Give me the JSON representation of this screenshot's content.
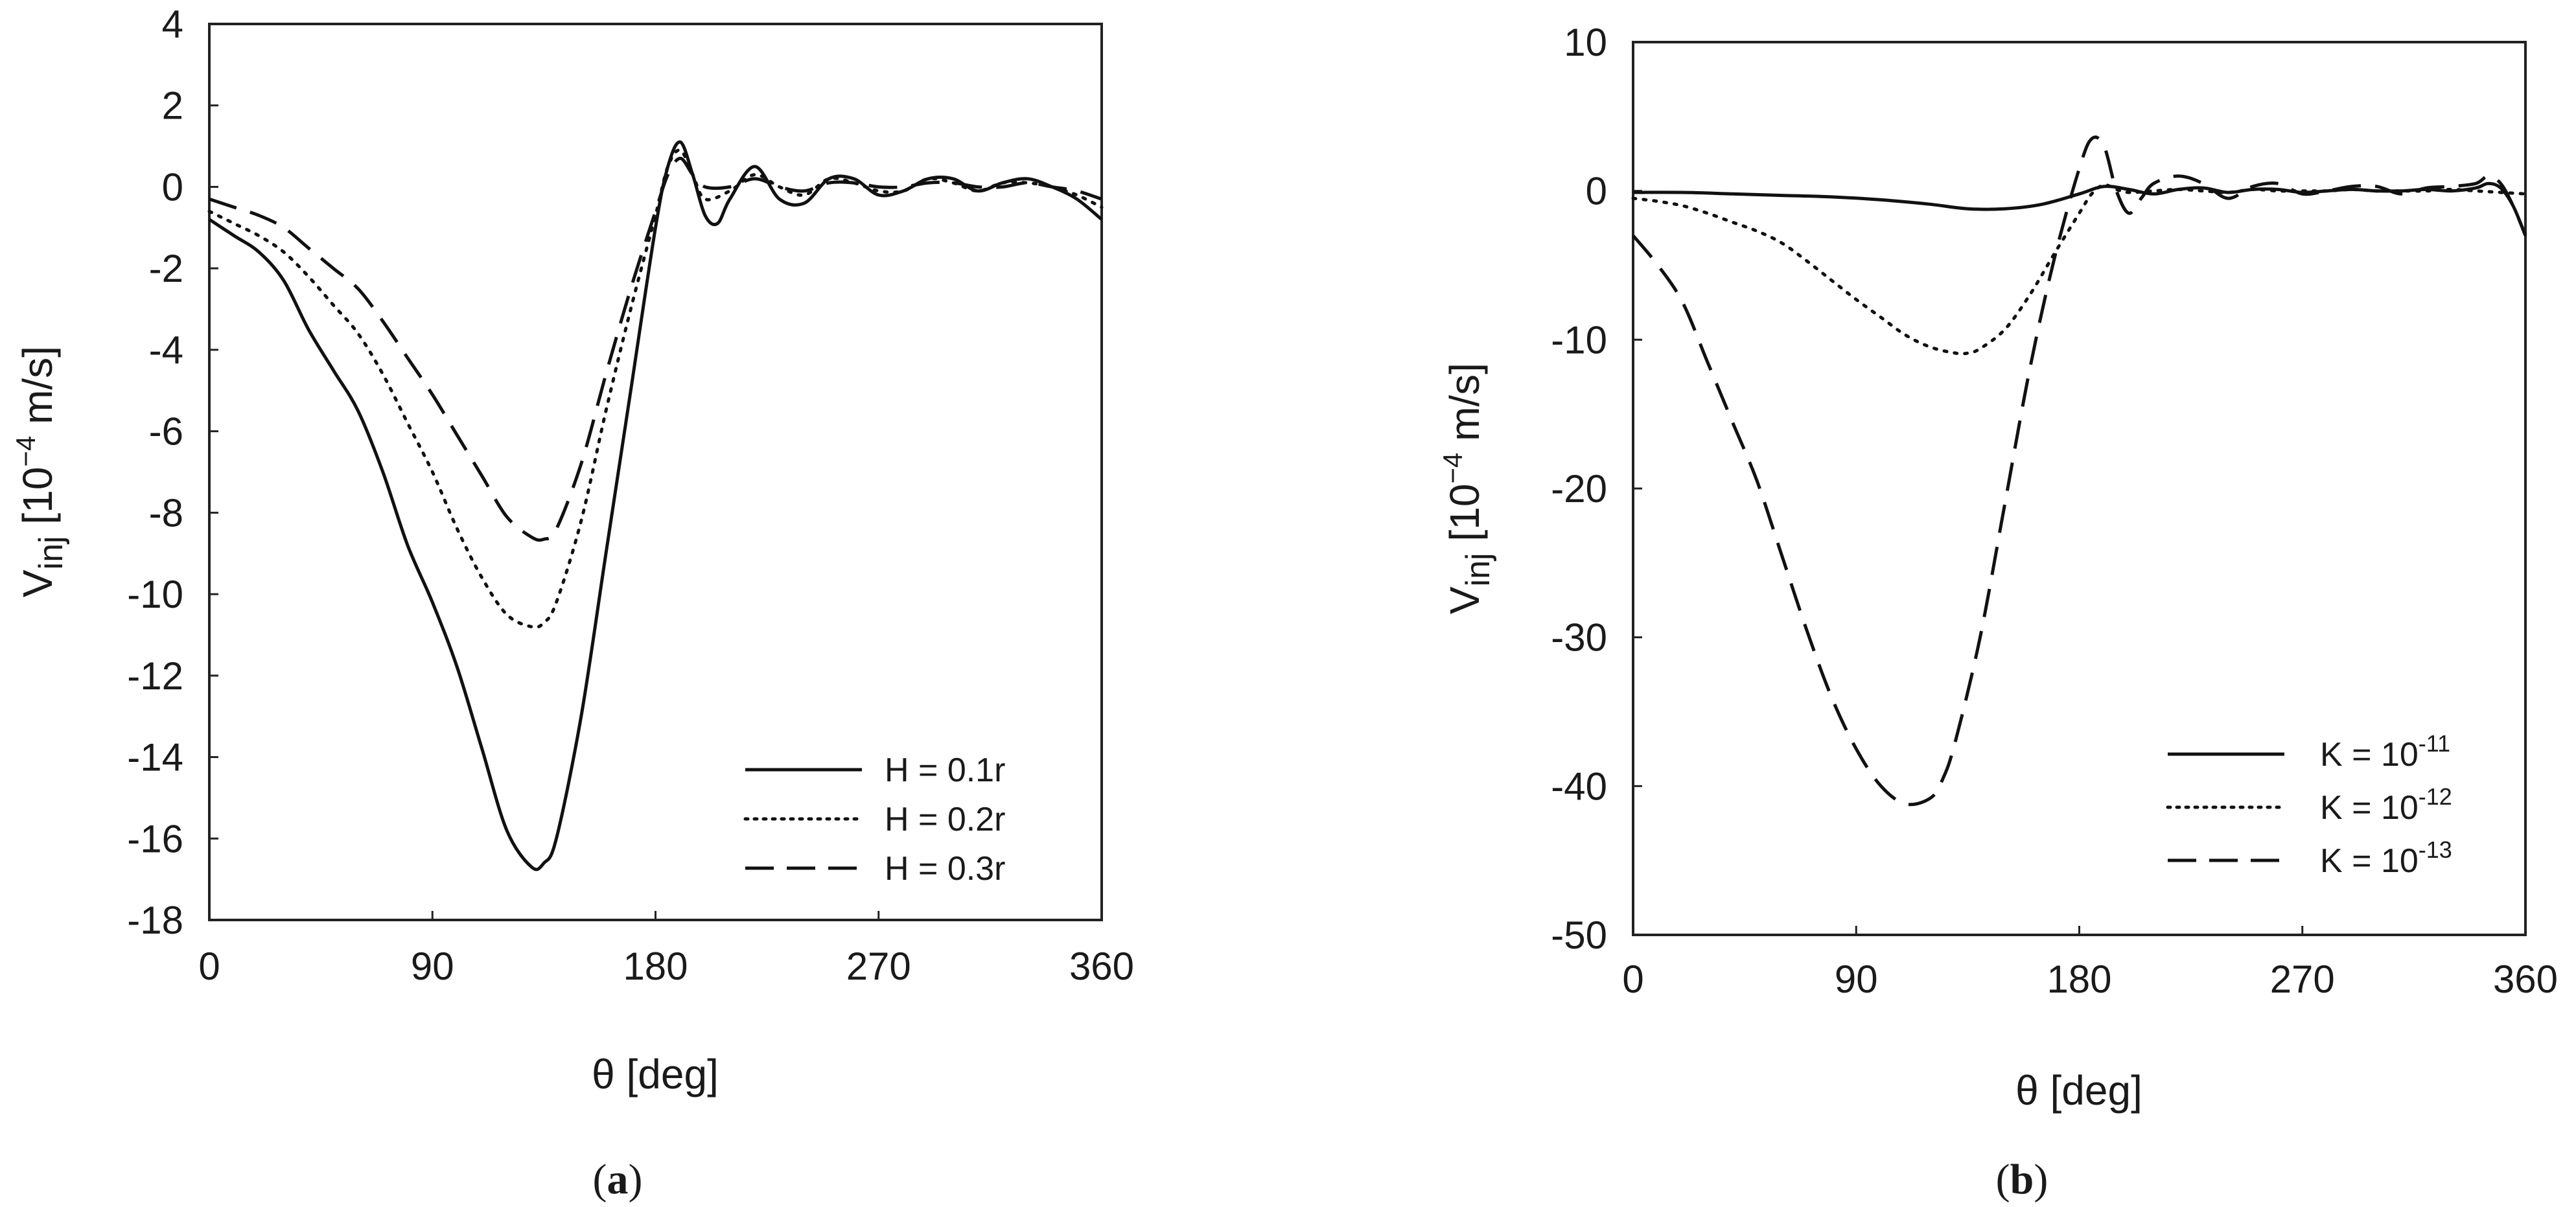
{
  "chart_data": [
    {
      "type": "line",
      "caption": {
        "open": "(",
        "letter": "a",
        "close": ")"
      },
      "xlabel": "θ [deg]",
      "ylabel": {
        "main": "V",
        "sub": "inj",
        "unit_prefix": " [10",
        "exp": "−4",
        "unit_suffix": " m/s]"
      },
      "xlim": [
        0,
        360
      ],
      "ylim": [
        -18,
        4
      ],
      "xticks": [
        0,
        90,
        180,
        270,
        360
      ],
      "yticks": [
        4,
        2,
        0,
        -2,
        -4,
        -6,
        -8,
        -10,
        -12,
        -14,
        -16,
        -18
      ],
      "tick_labels_x": [
        "0",
        "90",
        "180",
        "270",
        "360"
      ],
      "tick_labels_y": [
        "4",
        "2",
        "0",
        "-2",
        "-4",
        "-6",
        "-8",
        "-10",
        "-12",
        "-14",
        "-16",
        "-18"
      ],
      "legend_position": "bottom-right",
      "series": [
        {
          "name": "H = 0.1r",
          "label": "H = 0.1r",
          "style": "solid",
          "x": [
            0,
            10,
            20,
            30,
            40,
            50,
            60,
            70,
            80,
            90,
            100,
            110,
            120,
            130,
            135,
            140,
            150,
            160,
            170,
            180,
            185,
            190,
            195,
            200,
            205,
            210,
            220,
            230,
            240,
            250,
            260,
            270,
            280,
            290,
            300,
            310,
            320,
            330,
            340,
            350,
            360
          ],
          "y": [
            -0.8,
            -1.2,
            -1.6,
            -2.3,
            -3.5,
            -4.5,
            -5.5,
            -7.0,
            -8.8,
            -10.2,
            -11.8,
            -13.8,
            -15.8,
            -16.7,
            -16.6,
            -16.0,
            -13.0,
            -9.0,
            -5.0,
            -1.0,
            0.5,
            1.1,
            0.3,
            -0.7,
            -0.9,
            -0.3,
            0.5,
            -0.3,
            -0.4,
            0.2,
            0.2,
            -0.2,
            -0.1,
            0.2,
            0.2,
            -0.1,
            0.1,
            0.2,
            0.0,
            -0.3,
            -0.8
          ]
        },
        {
          "name": "H = 0.2r",
          "label": "H = 0.2r",
          "style": "dotted",
          "x": [
            0,
            10,
            20,
            30,
            40,
            50,
            60,
            70,
            80,
            90,
            100,
            110,
            120,
            130,
            135,
            140,
            150,
            160,
            170,
            180,
            185,
            190,
            195,
            200,
            210,
            220,
            230,
            240,
            250,
            260,
            270,
            280,
            290,
            300,
            310,
            320,
            330,
            340,
            350,
            360
          ],
          "y": [
            -0.6,
            -0.9,
            -1.2,
            -1.6,
            -2.2,
            -2.9,
            -3.6,
            -4.6,
            -5.8,
            -7.0,
            -8.4,
            -9.6,
            -10.5,
            -10.8,
            -10.7,
            -10.2,
            -8.2,
            -5.5,
            -3.0,
            -0.7,
            0.5,
            0.9,
            0.3,
            -0.3,
            -0.1,
            0.3,
            0.0,
            -0.2,
            0.2,
            0.1,
            -0.1,
            -0.1,
            0.2,
            0.1,
            -0.1,
            0.1,
            0.1,
            0.0,
            -0.2,
            -0.5
          ]
        },
        {
          "name": "H = 0.3r",
          "label": "H = 0.3r",
          "style": "dashed",
          "x": [
            0,
            10,
            20,
            30,
            40,
            50,
            60,
            70,
            80,
            90,
            100,
            110,
            120,
            130,
            135,
            140,
            150,
            160,
            170,
            180,
            185,
            190,
            195,
            200,
            210,
            220,
            230,
            240,
            250,
            260,
            270,
            280,
            290,
            300,
            310,
            320,
            330,
            340,
            350,
            360
          ],
          "y": [
            -0.3,
            -0.5,
            -0.7,
            -1.0,
            -1.5,
            -2.0,
            -2.5,
            -3.3,
            -4.2,
            -5.1,
            -6.1,
            -7.1,
            -8.1,
            -8.6,
            -8.65,
            -8.4,
            -6.8,
            -4.6,
            -2.5,
            -0.6,
            0.3,
            0.7,
            0.3,
            0.0,
            0.0,
            0.2,
            0.0,
            -0.1,
            0.1,
            0.1,
            0.0,
            0.0,
            0.1,
            0.1,
            0.0,
            0.0,
            0.1,
            0.0,
            -0.1,
            -0.3
          ]
        }
      ]
    },
    {
      "type": "line",
      "caption": {
        "open": "(",
        "letter": "b",
        "close": ")"
      },
      "xlabel": "θ [deg]",
      "ylabel": {
        "main": "V",
        "sub": "inj",
        "unit_prefix": " [10",
        "exp": "−4",
        "unit_suffix": " m/s]"
      },
      "xlim": [
        0,
        360
      ],
      "ylim": [
        -50,
        10
      ],
      "xticks": [
        0,
        90,
        180,
        270,
        360
      ],
      "yticks": [
        10,
        0,
        -10,
        -20,
        -30,
        -40,
        -50
      ],
      "tick_labels_x": [
        "0",
        "90",
        "180",
        "270",
        "360"
      ],
      "tick_labels_y": [
        "10",
        "0",
        "-10",
        "-20",
        "-30",
        "-40",
        "-50"
      ],
      "legend_position": "bottom-right",
      "series": [
        {
          "name": "K = 10^-11",
          "label": {
            "prefix": "K = 10",
            "exp": "-11"
          },
          "style": "solid",
          "x": [
            0,
            20,
            40,
            60,
            80,
            100,
            120,
            135,
            150,
            165,
            180,
            190,
            200,
            210,
            220,
            230,
            240,
            250,
            260,
            270,
            280,
            290,
            300,
            310,
            320,
            330,
            340,
            345,
            350,
            355,
            360
          ],
          "y": [
            -0.1,
            -0.1,
            -0.2,
            -0.3,
            -0.4,
            -0.6,
            -0.9,
            -1.2,
            -1.2,
            -0.9,
            -0.2,
            0.3,
            0.1,
            -0.2,
            0.1,
            0.2,
            -0.1,
            0.1,
            0.1,
            -0.1,
            0.0,
            0.1,
            0.0,
            0.0,
            0.1,
            0.0,
            0.2,
            0.5,
            0.2,
            -1.0,
            -3.0
          ]
        },
        {
          "name": "K = 10^-12",
          "label": {
            "prefix": "K = 10",
            "exp": "-12"
          },
          "style": "dotted",
          "x": [
            0,
            10,
            20,
            30,
            40,
            50,
            60,
            70,
            80,
            90,
            100,
            110,
            120,
            130,
            135,
            140,
            150,
            160,
            170,
            180,
            185,
            190,
            195,
            200,
            210,
            220,
            230,
            240,
            250,
            260,
            270,
            280,
            290,
            300,
            310,
            320,
            330,
            340,
            350,
            360
          ],
          "y": [
            -0.5,
            -0.7,
            -1.0,
            -1.5,
            -2.1,
            -2.7,
            -3.5,
            -4.7,
            -6.0,
            -7.3,
            -8.5,
            -9.7,
            -10.5,
            -10.9,
            -10.9,
            -10.6,
            -9.3,
            -7.0,
            -4.2,
            -1.5,
            -0.2,
            0.4,
            0.1,
            -0.1,
            0.0,
            0.1,
            0.0,
            -0.1,
            0.1,
            0.0,
            0.0,
            0.0,
            0.1,
            0.0,
            0.0,
            0.0,
            0.1,
            0.0,
            -0.1,
            -0.2
          ]
        },
        {
          "name": "K = 10^-13",
          "label": {
            "prefix": "K = 10",
            "exp": "-13"
          },
          "style": "dashed",
          "x": [
            0,
            10,
            20,
            30,
            40,
            50,
            60,
            70,
            80,
            90,
            100,
            110,
            120,
            125,
            130,
            140,
            150,
            160,
            170,
            180,
            185,
            190,
            195,
            200,
            205,
            210,
            220,
            230,
            240,
            250,
            260,
            270,
            280,
            290,
            300,
            310,
            320,
            330,
            340,
            345,
            350,
            355,
            360
          ],
          "y": [
            -3.0,
            -5.0,
            -7.5,
            -11.5,
            -15.5,
            -19.5,
            -24.5,
            -29.5,
            -34.0,
            -37.5,
            -40.0,
            -41.2,
            -40.8,
            -39.5,
            -37.0,
            -30.0,
            -21.0,
            -12.0,
            -4.5,
            1.5,
            3.5,
            3.0,
            0.0,
            -1.5,
            -0.5,
            0.5,
            1.0,
            0.5,
            -0.5,
            0.3,
            0.5,
            -0.2,
            0.0,
            0.3,
            0.3,
            -0.2,
            0.2,
            0.3,
            0.5,
            1.0,
            0.5,
            -1.0,
            -3.0
          ]
        }
      ]
    }
  ]
}
